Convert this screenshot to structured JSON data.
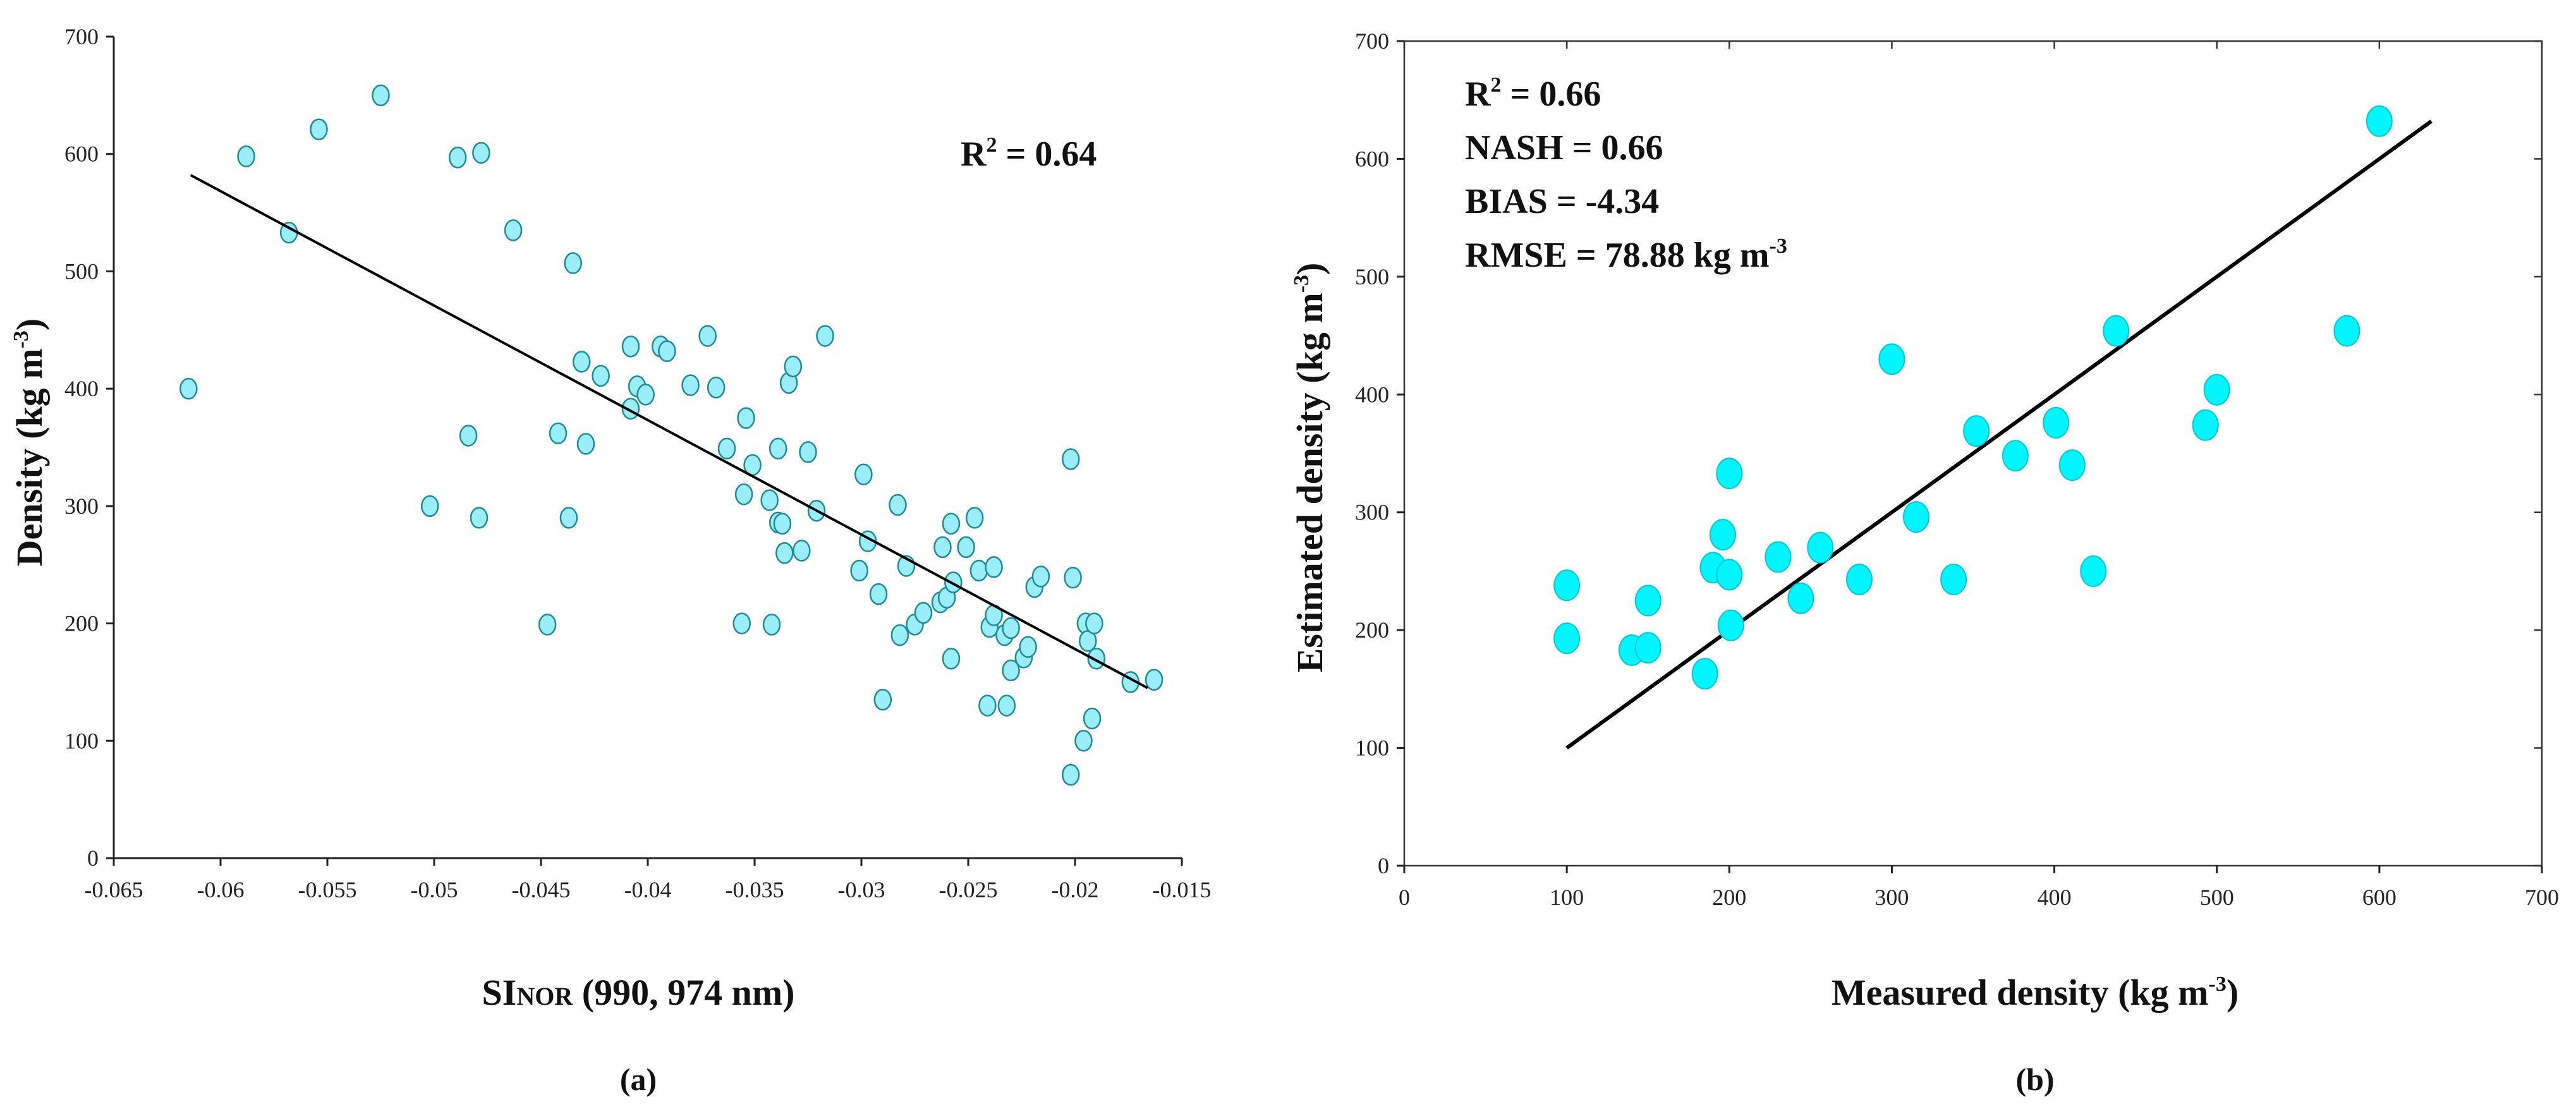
{
  "chart_data": [
    {
      "panel_label": "(a)",
      "type": "scatter",
      "xlabel_main": "SI",
      "xlabel_sub": "NOR",
      "xlabel_rest": " (990, 974 nm)",
      "ylabel_main": "Density (kg m",
      "ylabel_sup": "-3",
      "ylabel_end": ")",
      "xlim": [
        -0.065,
        -0.015
      ],
      "ylim": [
        0,
        700
      ],
      "xticks": [
        -0.065,
        -0.06,
        -0.055,
        -0.05,
        -0.045,
        -0.04,
        -0.035,
        -0.03,
        -0.025,
        -0.02,
        -0.015
      ],
      "xtick_labels": [
        "-0.065",
        "-0.06",
        "-0.055",
        "-0.05",
        "-0.045",
        "-0.04",
        "-0.035",
        "-0.03",
        "-0.025",
        "-0.02",
        "-0.015"
      ],
      "yticks": [
        0,
        100,
        200,
        300,
        400,
        500,
        600,
        700
      ],
      "ytick_labels": [
        "0",
        "100",
        "200",
        "300",
        "400",
        "500",
        "600",
        "700"
      ],
      "stats": [
        {
          "label": "R",
          "sup": "2",
          "value": " = 0.64"
        }
      ],
      "fit_line": {
        "x": [
          -0.0614,
          -0.0166
        ],
        "y": [
          582,
          145
        ]
      },
      "marker_color": "#99EEF8",
      "marker_edge": "#1E8A98",
      "points": {
        "x": [
          -0.0615,
          -0.0588,
          -0.0568,
          -0.0554,
          -0.0525,
          -0.0502,
          -0.0489,
          -0.0484,
          -0.0479,
          -0.0478,
          -0.0463,
          -0.0447,
          -0.0442,
          -0.0437,
          -0.0435,
          -0.0431,
          -0.0429,
          -0.0422,
          -0.0408,
          -0.0408,
          -0.0405,
          -0.0401,
          -0.0394,
          -0.0391,
          -0.038,
          -0.0372,
          -0.0368,
          -0.0363,
          -0.0356,
          -0.0355,
          -0.0354,
          -0.0351,
          -0.0343,
          -0.0342,
          -0.0339,
          -0.0339,
          -0.0337,
          -0.0336,
          -0.0334,
          -0.0332,
          -0.0328,
          -0.0325,
          -0.0321,
          -0.0317,
          -0.0301,
          -0.0299,
          -0.0297,
          -0.0292,
          -0.029,
          -0.0283,
          -0.0282,
          -0.0279,
          -0.0275,
          -0.0271,
          -0.0263,
          -0.0262,
          -0.026,
          -0.0258,
          -0.0258,
          -0.0257,
          -0.0251,
          -0.0247,
          -0.0245,
          -0.0241,
          -0.024,
          -0.0238,
          -0.0238,
          -0.0233,
          -0.0232,
          -0.023,
          -0.023,
          -0.0224,
          -0.0222,
          -0.0219,
          -0.0216,
          -0.0202,
          -0.0202,
          -0.0201,
          -0.0196,
          -0.0195,
          -0.0194,
          -0.0192,
          -0.0191,
          -0.019,
          -0.0174,
          -0.0163
        ],
        "y": [
          400,
          598,
          533,
          621,
          650,
          300,
          597,
          360,
          290,
          601,
          535,
          199,
          362,
          290,
          507,
          423,
          353,
          411,
          436,
          383,
          402,
          395,
          436,
          432,
          403,
          445,
          401,
          349,
          200,
          310,
          375,
          335,
          305,
          199,
          349,
          286,
          285,
          260,
          405,
          419,
          262,
          346,
          296,
          445,
          245,
          327,
          270,
          225,
          135,
          301,
          190,
          249,
          199,
          209,
          218,
          265,
          222,
          170,
          285,
          235,
          265,
          290,
          245,
          130,
          197,
          248,
          207,
          190,
          130,
          160,
          196,
          171,
          180,
          231,
          240,
          71,
          340,
          239,
          100,
          200,
          185,
          119,
          200,
          170,
          150,
          152
        ]
      }
    },
    {
      "panel_label": "(b)",
      "type": "scatter",
      "xlabel_main": "Measured density (kg m",
      "xlabel_sup": "-3",
      "xlabel_end": ")",
      "ylabel_main": "Estimated density (kg m",
      "ylabel_sup": "-3",
      "ylabel_end": ")",
      "xlim": [
        0,
        700
      ],
      "ylim": [
        0,
        700
      ],
      "xticks": [
        0,
        100,
        200,
        300,
        400,
        500,
        600,
        700
      ],
      "xtick_labels": [
        "0",
        "100",
        "200",
        "300",
        "400",
        "500",
        "600",
        "700"
      ],
      "yticks": [
        0,
        100,
        200,
        300,
        400,
        500,
        600,
        700
      ],
      "ytick_labels": [
        "0",
        "100",
        "200",
        "300",
        "400",
        "500",
        "600",
        "700"
      ],
      "stats": [
        {
          "label": "R",
          "sup": "2",
          "value": " = 0.66"
        },
        {
          "label": "NASH = 0.66"
        },
        {
          "label": "BIAS = -4.34"
        },
        {
          "label": "RMSE = 78.88 kg m",
          "sup": "-3"
        }
      ],
      "fit_line": {
        "x": [
          100,
          632
        ],
        "y": [
          100,
          632
        ]
      },
      "marker_color": "#00F5FF",
      "marker_edge": "#00C8D8",
      "points": {
        "x": [
          100,
          100,
          140,
          150,
          150,
          185,
          190,
          196,
          200,
          200,
          201,
          230,
          244,
          256,
          280,
          300,
          315,
          338,
          352,
          376,
          401,
          411,
          424,
          438,
          493,
          500,
          580,
          600
        ],
        "y": [
          238,
          193,
          183,
          225,
          185,
          163,
          253,
          281,
          333,
          247,
          204,
          262,
          227,
          270,
          243,
          430,
          296,
          243,
          369,
          348,
          376,
          340,
          250,
          454,
          374,
          404,
          454,
          632
        ]
      }
    }
  ]
}
